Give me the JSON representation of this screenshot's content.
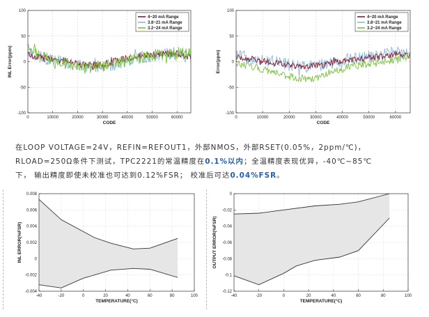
{
  "description": {
    "line1": "在LOOP VOLTAGE=24V，REFIN=REFOUT1，外部NMOS，外部RSET(0.05%，2ppm/℃)，",
    "line2a": "RLOAD=250Ω条件下测试，TPC2221的常温精度在",
    "line2_highlight": "0.1%以内",
    "line2b": "；全温精度表现优异，-40℃~85℃",
    "line3a": "下， 输出精度即使未校准也可达到0.12%FSR； 校准后可达",
    "line3_highlight": "0.04%FSR",
    "line3b": "。",
    "highlight_color": "#1f5fbf"
  },
  "colors": {
    "red": "#8b1a2e",
    "blue": "#86b9dc",
    "green": "#7cc23b",
    "band": "#e6e6e6",
    "line": "#333333"
  },
  "chart_data": [
    {
      "type": "line",
      "id": "inl_vs_code",
      "xlabel": "CODE",
      "ylabel": "INL Error(ppm)",
      "xlim": [
        0,
        65535
      ],
      "ylim": [
        -100,
        100
      ],
      "xticks": [
        0,
        10000,
        20000,
        30000,
        40000,
        50000,
        60000
      ],
      "yticks": [
        -100,
        -50,
        0,
        50,
        100
      ],
      "xtick_labels": [
        "0",
        "10000",
        "20000",
        "30000",
        "40000",
        "50000",
        "60000"
      ],
      "ytick_labels": [
        "-100",
        "-50",
        "0",
        "50",
        "100"
      ],
      "legend_position": "top-right",
      "series": [
        {
          "name": "4~20 mA Range",
          "color": "#8b1a2e",
          "anchors_x": [
            0,
            6000,
            12000,
            18000,
            24000,
            30000,
            36000,
            42000,
            48000,
            54000,
            60000,
            65535
          ],
          "anchors_y": [
            12,
            8,
            3,
            -2,
            -8,
            -5,
            2,
            8,
            12,
            14,
            15,
            10
          ],
          "noise": 7
        },
        {
          "name": "3.8~21 mA Range",
          "color": "#86b9dc",
          "anchors_x": [
            0,
            6000,
            12000,
            18000,
            24000,
            30000,
            36000,
            42000,
            48000,
            54000,
            60000,
            65535
          ],
          "anchors_y": [
            20,
            8,
            0,
            -4,
            -12,
            -10,
            -5,
            5,
            10,
            14,
            16,
            12
          ],
          "noise": 12
        },
        {
          "name": "3.2~24 mA Range",
          "color": "#7cc23b",
          "anchors_x": [
            0,
            6000,
            12000,
            18000,
            24000,
            30000,
            36000,
            42000,
            48000,
            54000,
            60000,
            65535
          ],
          "anchors_y": [
            28,
            10,
            -2,
            -8,
            -14,
            -8,
            -2,
            6,
            10,
            14,
            18,
            15
          ],
          "noise": 11
        }
      ]
    },
    {
      "type": "line",
      "id": "error_vs_code",
      "xlabel": "CODE",
      "ylabel": "Error(ppm)",
      "xlim": [
        0,
        65535
      ],
      "ylim": [
        -100,
        100
      ],
      "xticks": [
        0,
        10000,
        20000,
        30000,
        40000,
        50000,
        60000
      ],
      "yticks": [
        -100,
        -50,
        0,
        50,
        100
      ],
      "xtick_labels": [
        "0",
        "10000",
        "20000",
        "30000",
        "40000",
        "50000",
        "60000"
      ],
      "ytick_labels": [
        "-100",
        "-50",
        "0",
        "50",
        "100"
      ],
      "legend_position": "top-right",
      "series": [
        {
          "name": "4~20 mA Range",
          "color": "#8b1a2e",
          "anchors_x": [
            0,
            6000,
            12000,
            18000,
            24000,
            30000,
            36000,
            42000,
            48000,
            54000,
            60000,
            65535
          ],
          "anchors_y": [
            10,
            5,
            0,
            -5,
            -10,
            -8,
            -2,
            2,
            6,
            10,
            14,
            12
          ],
          "noise": 6
        },
        {
          "name": "3.8~21 mA Range",
          "color": "#86b9dc",
          "anchors_x": [
            0,
            6000,
            12000,
            18000,
            24000,
            30000,
            36000,
            42000,
            48000,
            54000,
            60000,
            65535
          ],
          "anchors_y": [
            12,
            8,
            2,
            -4,
            -10,
            -8,
            -3,
            4,
            8,
            12,
            18,
            15
          ],
          "noise": 12
        },
        {
          "name": "3.2~24 mA Range",
          "color": "#7cc23b",
          "anchors_x": [
            0,
            6000,
            12000,
            18000,
            24000,
            30000,
            36000,
            42000,
            48000,
            54000,
            60000,
            65535
          ],
          "anchors_y": [
            -2,
            -10,
            -18,
            -26,
            -34,
            -32,
            -20,
            -12,
            -6,
            -2,
            4,
            10
          ],
          "noise": 7
        }
      ]
    },
    {
      "type": "area",
      "id": "inl_vs_temperature",
      "xlabel": "TEMPERATURE(°C)",
      "ylabel": "INL ERROR(%FSR)",
      "xlim": [
        -40,
        100
      ],
      "ylim": [
        -0.004,
        0.008
      ],
      "xticks": [
        -40,
        -20,
        0,
        20,
        40,
        60,
        80,
        100
      ],
      "yticks": [
        -0.004,
        -0.002,
        0,
        0.002,
        0.004,
        0.006,
        0.008
      ],
      "xtick_labels": [
        "-40",
        "-20",
        "0",
        "20",
        "40",
        "60",
        "80",
        "100"
      ],
      "ytick_labels": [
        "-0.004",
        "-0.002",
        "0",
        "0.002",
        "0.004",
        "0.006",
        "0.008"
      ],
      "series": [
        {
          "name": "upper",
          "x": [
            -40,
            -20,
            10,
            25,
            45,
            60,
            85
          ],
          "y": [
            0.0073,
            0.0048,
            0.0026,
            0.0019,
            0.0012,
            0.0013,
            0.0025
          ]
        },
        {
          "name": "lower",
          "x": [
            -40,
            -20,
            0,
            25,
            45,
            60,
            85
          ],
          "y": [
            -0.0032,
            -0.0036,
            -0.0024,
            -0.0014,
            -0.0012,
            -0.0013,
            -0.0023
          ]
        }
      ]
    },
    {
      "type": "area",
      "id": "output_error_vs_temperature",
      "xlabel": "TEMPERATURE(°C)",
      "ylabel": "OUTPUT ERROR(%FSR)",
      "xlim": [
        -40,
        100
      ],
      "ylim": [
        -0.12,
        0
      ],
      "xticks": [
        -40,
        -20,
        0,
        20,
        40,
        60,
        80,
        100
      ],
      "yticks": [
        -0.12,
        -0.1,
        -0.08,
        -0.06,
        -0.04,
        -0.02,
        0
      ],
      "xtick_labels": [
        "-40",
        "-20",
        "0",
        "20",
        "40",
        "60",
        "80",
        "100"
      ],
      "ytick_labels": [
        "-0.12",
        "-0.1",
        "-0.08",
        "-0.06",
        "-0.04",
        "-0.02",
        "0"
      ],
      "series": [
        {
          "name": "upper",
          "x": [
            -40,
            -20,
            0,
            25,
            45,
            60,
            85
          ],
          "y": [
            -0.025,
            -0.024,
            -0.02,
            -0.015,
            -0.013,
            -0.01,
            0
          ]
        },
        {
          "name": "lower",
          "x": [
            -40,
            -20,
            0,
            10,
            25,
            45,
            60,
            85
          ],
          "y": [
            -0.101,
            -0.112,
            -0.098,
            -0.089,
            -0.082,
            -0.078,
            -0.07,
            -0.03
          ]
        }
      ]
    }
  ]
}
